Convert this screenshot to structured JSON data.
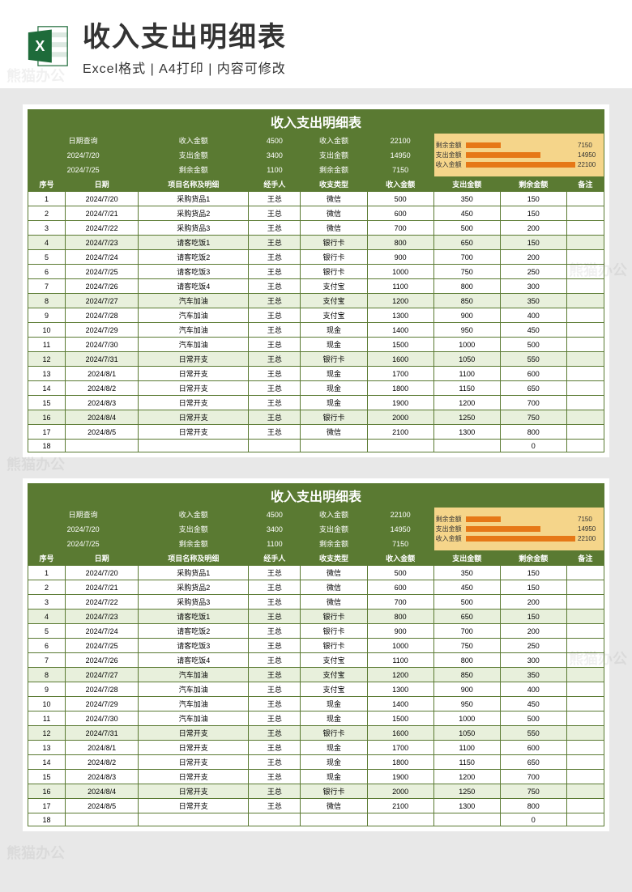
{
  "header": {
    "title": "收入支出明细表",
    "subtitle": "Excel格式 | A4打印 | 内容可修改"
  },
  "sheet": {
    "title": "收入支出明细表",
    "query": {
      "label": "日期查询",
      "date1": "2024/7/20",
      "date2": "2024/7/25",
      "r1c1l": "收入金额",
      "r1c1v": "4500",
      "r1c2l": "收入金额",
      "r1c2v": "22100",
      "r2c1l": "支出金额",
      "r2c1v": "3400",
      "r2c2l": "支出金额",
      "r2c2v": "14950",
      "r3c1l": "剩余金额",
      "r3c1v": "1100",
      "r3c2l": "剩余金额",
      "r3c2v": "7150"
    },
    "chart": {
      "bars": [
        {
          "label": "剩余金额",
          "value": "7150",
          "pct": 32
        },
        {
          "label": "支出金额",
          "value": "14950",
          "pct": 68
        },
        {
          "label": "收入金额",
          "value": "22100",
          "pct": 100
        }
      ]
    },
    "columns": [
      "序号",
      "日期",
      "项目名称及明细",
      "经手人",
      "收支类型",
      "收入金额",
      "支出金额",
      "剩余金额",
      "备注"
    ],
    "rows": [
      [
        "1",
        "2024/7/20",
        "采购货品1",
        "王总",
        "微信",
        "500",
        "350",
        "150",
        ""
      ],
      [
        "2",
        "2024/7/21",
        "采购货品2",
        "王总",
        "微信",
        "600",
        "450",
        "150",
        ""
      ],
      [
        "3",
        "2024/7/22",
        "采购货品3",
        "王总",
        "微信",
        "700",
        "500",
        "200",
        ""
      ],
      [
        "4",
        "2024/7/23",
        "请客吃饭1",
        "王总",
        "银行卡",
        "800",
        "650",
        "150",
        ""
      ],
      [
        "5",
        "2024/7/24",
        "请客吃饭2",
        "王总",
        "银行卡",
        "900",
        "700",
        "200",
        ""
      ],
      [
        "6",
        "2024/7/25",
        "请客吃饭3",
        "王总",
        "银行卡",
        "1000",
        "750",
        "250",
        ""
      ],
      [
        "7",
        "2024/7/26",
        "请客吃饭4",
        "王总",
        "支付宝",
        "1100",
        "800",
        "300",
        ""
      ],
      [
        "8",
        "2024/7/27",
        "汽车加油",
        "王总",
        "支付宝",
        "1200",
        "850",
        "350",
        ""
      ],
      [
        "9",
        "2024/7/28",
        "汽车加油",
        "王总",
        "支付宝",
        "1300",
        "900",
        "400",
        ""
      ],
      [
        "10",
        "2024/7/29",
        "汽车加油",
        "王总",
        "现金",
        "1400",
        "950",
        "450",
        ""
      ],
      [
        "11",
        "2024/7/30",
        "汽车加油",
        "王总",
        "现金",
        "1500",
        "1000",
        "500",
        ""
      ],
      [
        "12",
        "2024/7/31",
        "日常开支",
        "王总",
        "银行卡",
        "1600",
        "1050",
        "550",
        ""
      ],
      [
        "13",
        "2024/8/1",
        "日常开支",
        "王总",
        "现金",
        "1700",
        "1100",
        "600",
        ""
      ],
      [
        "14",
        "2024/8/2",
        "日常开支",
        "王总",
        "现金",
        "1800",
        "1150",
        "650",
        ""
      ],
      [
        "15",
        "2024/8/3",
        "日常开支",
        "王总",
        "现金",
        "1900",
        "1200",
        "700",
        ""
      ],
      [
        "16",
        "2024/8/4",
        "日常开支",
        "王总",
        "银行卡",
        "2000",
        "1250",
        "750",
        ""
      ],
      [
        "17",
        "2024/8/5",
        "日常开支",
        "王总",
        "微信",
        "2100",
        "1300",
        "800",
        ""
      ],
      [
        "18",
        "",
        "",
        "",
        "",
        "",
        "",
        "0",
        ""
      ]
    ],
    "altRows": [
      3,
      7,
      11,
      15
    ]
  },
  "colors": {
    "green": "#5a7a32",
    "altGreen": "#e8f0dc",
    "chartBg": "#f5d58a",
    "bar": "#e67817"
  }
}
